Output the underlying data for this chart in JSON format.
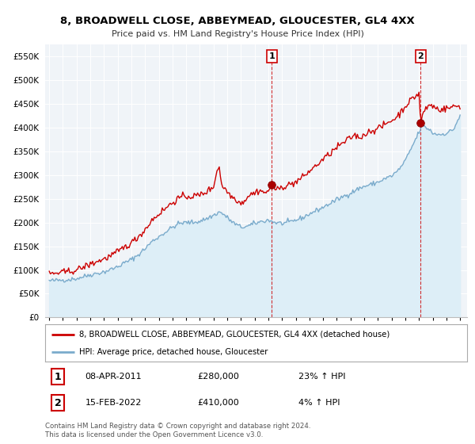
{
  "title": "8, BROADWELL CLOSE, ABBEYMEAD, GLOUCESTER, GL4 4XX",
  "subtitle": "Price paid vs. HM Land Registry's House Price Index (HPI)",
  "legend_line1": "8, BROADWELL CLOSE, ABBEYMEAD, GLOUCESTER, GL4 4XX (detached house)",
  "legend_line2": "HPI: Average price, detached house, Gloucester",
  "annotation1_date": "08-APR-2011",
  "annotation1_price": "£280,000",
  "annotation1_hpi": "23% ↑ HPI",
  "annotation2_date": "15-FEB-2022",
  "annotation2_price": "£410,000",
  "annotation2_hpi": "4% ↑ HPI",
  "footnote": "Contains HM Land Registry data © Crown copyright and database right 2024.\nThis data is licensed under the Open Government Licence v3.0.",
  "line_color_red": "#cc0000",
  "line_color_blue": "#7aabcc",
  "fill_color_blue": "#ddeef7",
  "marker_color_red": "#aa0000",
  "bg_color": "#f0f4f8",
  "grid_color": "#ffffff",
  "ylim": [
    0,
    575000
  ],
  "yticks": [
    0,
    50000,
    100000,
    150000,
    200000,
    250000,
    300000,
    350000,
    400000,
    450000,
    500000,
    550000
  ],
  "transaction1_year": 2011.25,
  "transaction1_value": 280000,
  "transaction2_year": 2022.12,
  "transaction2_value": 410000,
  "xlim_left": 1994.7,
  "xlim_right": 2025.5
}
